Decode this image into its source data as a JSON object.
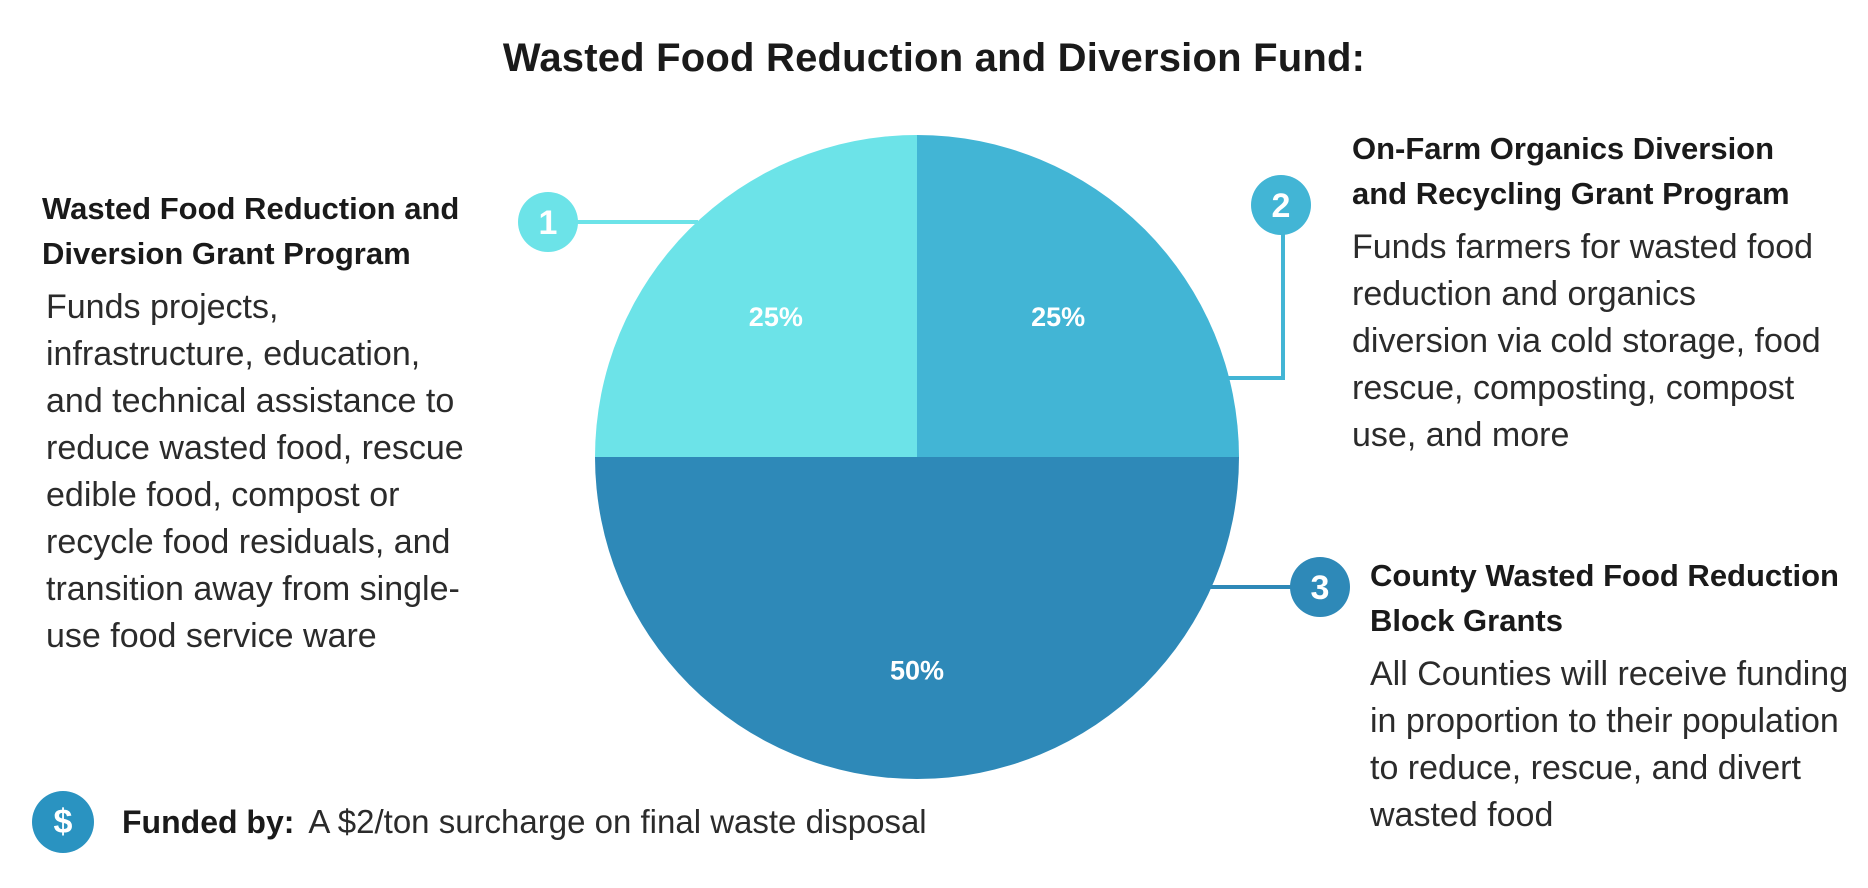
{
  "chart_data": {
    "type": "pie",
    "title": "Wasted Food Reduction and Diversion Fund:",
    "slices": [
      {
        "label": "1",
        "value": 25,
        "display": "25%",
        "color": "#6ce3e8"
      },
      {
        "label": "2",
        "value": 25,
        "display": "25%",
        "color": "#42b5d5"
      },
      {
        "label": "3",
        "value": 50,
        "display": "50%",
        "color": "#2e89b8"
      }
    ]
  },
  "programs": [
    {
      "number": "1",
      "title": "Wasted Food Reduction and Diversion Grant Program",
      "description": "Funds projects, infrastructure, education, and technical assistance to reduce wasted food, rescue edible food, compost or recycle food residuals, and transition away from single-use food service ware",
      "color": "#6ce3e8"
    },
    {
      "number": "2",
      "title": "On-Farm Organics Diversion and Recycling Grant Program",
      "description": "Funds farmers for wasted food reduction and organics diversion via cold storage, food rescue, composting, compost use, and more",
      "color": "#42b5d5"
    },
    {
      "number": "3",
      "title": "County Wasted Food Reduction Block Grants",
      "description": "All Counties will receive funding in proportion to their population to reduce, rescue, and divert wasted food",
      "color": "#2e89b8"
    }
  ],
  "funding": {
    "icon": "dollar-icon",
    "symbol": "$",
    "label": "Funded by:",
    "text": "A $2/ton surcharge on final waste disposal"
  }
}
